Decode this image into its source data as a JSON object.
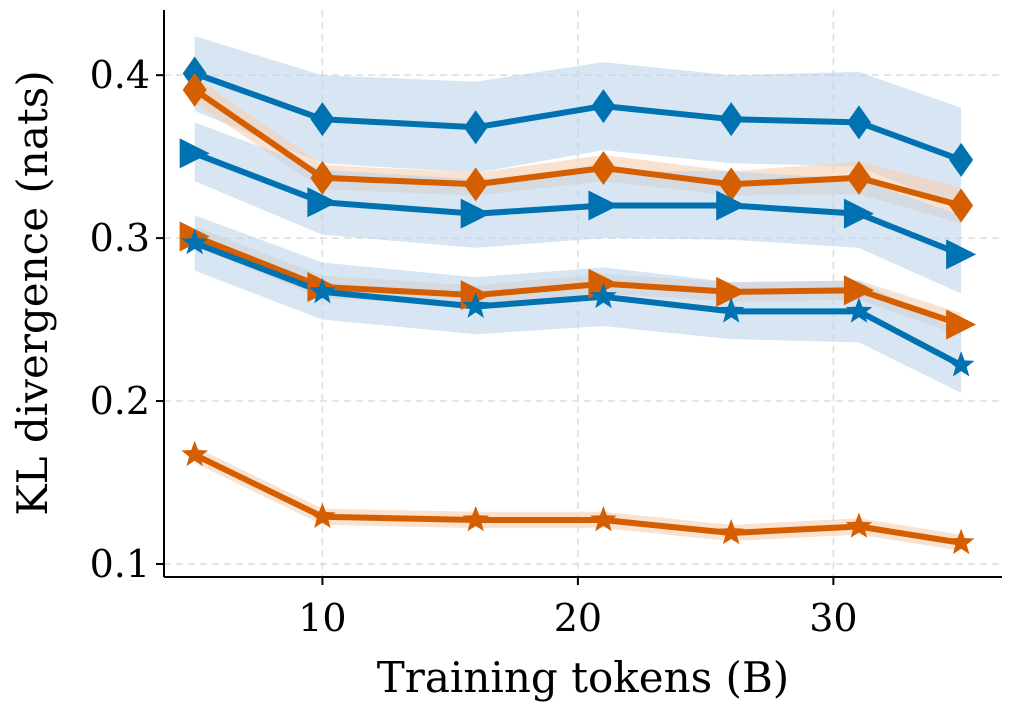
{
  "chart_data": {
    "type": "line",
    "xlabel": "Training tokens (B)",
    "ylabel": "KL divergence (nats)",
    "xlim": [
      3.8,
      36.6
    ],
    "ylim": [
      0.092,
      0.44
    ],
    "xticks": [
      10,
      20,
      30
    ],
    "yticks": [
      0.1,
      0.2,
      0.3,
      0.4
    ],
    "xtick_labels": [
      "10",
      "20",
      "30"
    ],
    "ytick_labels": [
      "0.1",
      "0.2",
      "0.3",
      "0.4"
    ],
    "grid": true,
    "x": [
      5,
      10,
      16,
      21,
      26,
      31,
      35
    ],
    "series": [
      {
        "color": "#0072B2",
        "marker": "diamond",
        "values": [
          0.401,
          0.373,
          0.368,
          0.381,
          0.373,
          0.371,
          0.348
        ],
        "band_low": [
          0.378,
          0.346,
          0.34,
          0.354,
          0.346,
          0.344,
          0.318
        ],
        "band_high": [
          0.424,
          0.4,
          0.396,
          0.408,
          0.4,
          0.402,
          0.38
        ]
      },
      {
        "color": "#D55E00",
        "marker": "diamond",
        "values": [
          0.391,
          0.337,
          0.333,
          0.343,
          0.333,
          0.337,
          0.32
        ],
        "band_low": [
          0.383,
          0.33,
          0.326,
          0.335,
          0.326,
          0.327,
          0.309
        ],
        "band_high": [
          0.399,
          0.345,
          0.34,
          0.351,
          0.341,
          0.347,
          0.331
        ]
      },
      {
        "color": "#0072B2",
        "marker": "triangle-right",
        "values": [
          0.352,
          0.322,
          0.315,
          0.32,
          0.32,
          0.315,
          0.29
        ],
        "band_low": [
          0.335,
          0.302,
          0.294,
          0.3,
          0.299,
          0.294,
          0.266
        ],
        "band_high": [
          0.371,
          0.342,
          0.336,
          0.341,
          0.341,
          0.336,
          0.314
        ]
      },
      {
        "color": "#D55E00",
        "marker": "triangle-right",
        "values": [
          0.301,
          0.27,
          0.265,
          0.272,
          0.267,
          0.268,
          0.247
        ],
        "band_low": [
          0.295,
          0.263,
          0.259,
          0.266,
          0.261,
          0.262,
          0.24
        ],
        "band_high": [
          0.307,
          0.277,
          0.271,
          0.278,
          0.273,
          0.274,
          0.254
        ]
      },
      {
        "color": "#0072B2",
        "marker": "star",
        "values": [
          0.297,
          0.267,
          0.258,
          0.264,
          0.255,
          0.255,
          0.222
        ],
        "band_low": [
          0.28,
          0.25,
          0.241,
          0.246,
          0.238,
          0.236,
          0.205
        ],
        "band_high": [
          0.314,
          0.285,
          0.276,
          0.282,
          0.273,
          0.274,
          0.242
        ]
      },
      {
        "color": "#D55E00",
        "marker": "star",
        "values": [
          0.167,
          0.129,
          0.127,
          0.127,
          0.119,
          0.123,
          0.113
        ],
        "band_low": [
          0.162,
          0.124,
          0.122,
          0.122,
          0.114,
          0.118,
          0.108
        ],
        "band_high": [
          0.172,
          0.134,
          0.132,
          0.132,
          0.124,
          0.128,
          0.118
        ]
      }
    ]
  }
}
